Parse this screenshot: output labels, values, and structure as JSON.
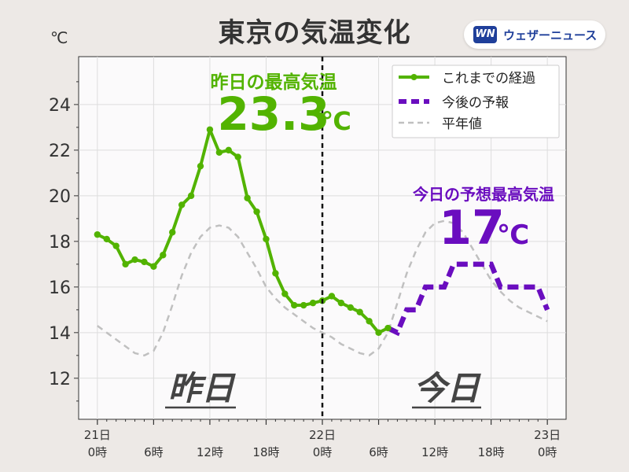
{
  "title": "東京の気温変化",
  "logo": {
    "mark": "WN",
    "text": "ウェザーニュース"
  },
  "chart_data": {
    "type": "line",
    "ylabel": "℃",
    "ylim": [
      10.2,
      26.1
    ],
    "y_ticks": [
      12,
      14,
      16,
      18,
      20,
      22,
      24
    ],
    "x_range_hours": [
      -2,
      50
    ],
    "x_ticks": [
      {
        "h": 0,
        "label": [
          "21日",
          "0時"
        ]
      },
      {
        "h": 6,
        "label": [
          "",
          "6時"
        ]
      },
      {
        "h": 12,
        "label": [
          "",
          "12時"
        ]
      },
      {
        "h": 18,
        "label": [
          "",
          "18時"
        ]
      },
      {
        "h": 24,
        "label": [
          "22日",
          "0時"
        ]
      },
      {
        "h": 30,
        "label": [
          "",
          "6時"
        ]
      },
      {
        "h": 36,
        "label": [
          "",
          "12時"
        ]
      },
      {
        "h": 42,
        "label": [
          "",
          "18時"
        ]
      },
      {
        "h": 48,
        "label": [
          "23日",
          "0時"
        ]
      }
    ],
    "divider_hour": 24,
    "series": [
      {
        "name": "これまでの経過",
        "color": "#52b300",
        "style": "solid-markers",
        "x": [
          0,
          1,
          2,
          3,
          4,
          5,
          6,
          7,
          8,
          9,
          10,
          11,
          12,
          13,
          14,
          15,
          16,
          17,
          18,
          19,
          20,
          21,
          22,
          23,
          24,
          25,
          26,
          27,
          28,
          29,
          30,
          31
        ],
        "values": [
          18.3,
          18.1,
          17.8,
          17.0,
          17.2,
          17.1,
          16.9,
          17.4,
          18.4,
          19.6,
          20.0,
          21.3,
          22.9,
          21.9,
          22.0,
          21.7,
          19.9,
          19.3,
          18.1,
          16.6,
          15.7,
          15.2,
          15.2,
          15.3,
          15.4,
          15.6,
          15.3,
          15.1,
          14.9,
          14.5,
          14.0,
          14.2
        ]
      },
      {
        "name": "今後の予報",
        "color": "#6a0dbf",
        "style": "dashed-thick",
        "x": [
          31,
          32,
          33,
          34,
          35,
          36,
          37,
          38,
          39,
          40,
          41,
          42,
          43,
          44,
          45,
          46,
          47,
          48
        ],
        "values": [
          14.2,
          14.0,
          15.0,
          15.0,
          16.0,
          16.0,
          16.0,
          17.0,
          17.0,
          17.0,
          17.0,
          17.0,
          16.0,
          16.0,
          16.0,
          16.0,
          16.0,
          15.0
        ]
      },
      {
        "name": "平年値",
        "color": "#c0c0c0",
        "style": "dashed",
        "x": [
          0,
          1,
          2,
          3,
          4,
          5,
          6,
          7,
          8,
          9,
          10,
          11,
          12,
          13,
          14,
          15,
          16,
          17,
          18,
          19,
          20,
          21,
          22,
          23,
          24,
          25,
          26,
          27,
          28,
          29,
          30,
          31,
          32,
          33,
          34,
          35,
          36,
          37,
          38,
          39,
          40,
          41,
          42,
          43,
          44,
          45,
          46,
          47,
          48
        ],
        "values": [
          14.3,
          14.0,
          13.7,
          13.4,
          13.1,
          13.0,
          13.2,
          14.0,
          15.2,
          16.5,
          17.5,
          18.2,
          18.6,
          18.7,
          18.6,
          18.2,
          17.5,
          16.8,
          16.0,
          15.5,
          15.1,
          14.8,
          14.5,
          14.2,
          14.0,
          13.8,
          13.5,
          13.3,
          13.1,
          13.0,
          13.3,
          14.0,
          15.3,
          16.6,
          17.6,
          18.4,
          18.8,
          18.9,
          18.8,
          18.4,
          17.7,
          17.0,
          16.3,
          15.8,
          15.4,
          15.1,
          14.9,
          14.7,
          14.5
        ]
      }
    ],
    "annotations": {
      "yesterday_max_label": "昨日の最高気温",
      "yesterday_max_value": "23.3",
      "today_max_label": "今日の予想最高気温",
      "today_max_value": "17",
      "unit": "℃",
      "yesterday_label": "昨日",
      "today_label": "今日"
    },
    "legend_position": "top-right",
    "grid": true
  }
}
